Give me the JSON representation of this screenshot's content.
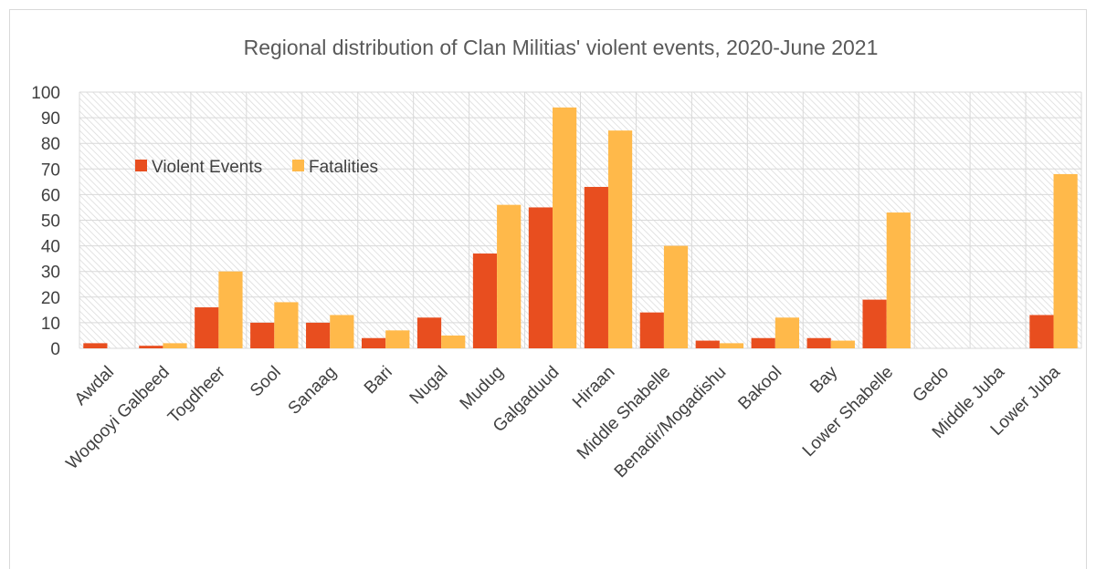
{
  "chart_data": {
    "type": "bar",
    "title": "Regional distribution of Clan Militias' violent events, 2020-June 2021",
    "xlabel": "",
    "ylabel": "",
    "categories": [
      "Awdal",
      "Woqooyi Galbeed",
      "Togdheer",
      "Sool",
      "Sanaag",
      "Bari",
      "Nugal",
      "Mudug",
      "Galgaduud",
      "Hiraan",
      "Middle Shabelle",
      "Benadir/Mogadishu",
      "Bakool",
      "Bay",
      "Lower Shabelle",
      "Gedo",
      "Middle Juba",
      "Lower Juba"
    ],
    "series": [
      {
        "name": "Violent Events",
        "color": "#e84e1f",
        "values": [
          2,
          1,
          16,
          10,
          10,
          4,
          12,
          37,
          55,
          63,
          14,
          3,
          4,
          4,
          19,
          0,
          0,
          13
        ]
      },
      {
        "name": "Fatalities",
        "color": "#ffb94a",
        "values": [
          0,
          2,
          30,
          18,
          13,
          7,
          5,
          56,
          94,
          85,
          40,
          2,
          12,
          3,
          53,
          0,
          0,
          68
        ]
      }
    ],
    "ylim": [
      0,
      100
    ],
    "yticks": [
      "0",
      "10",
      "20",
      "30",
      "40",
      "50",
      "60",
      "70",
      "80",
      "90",
      "100"
    ],
    "grid": true,
    "legend_position": "top-left inside plot"
  }
}
